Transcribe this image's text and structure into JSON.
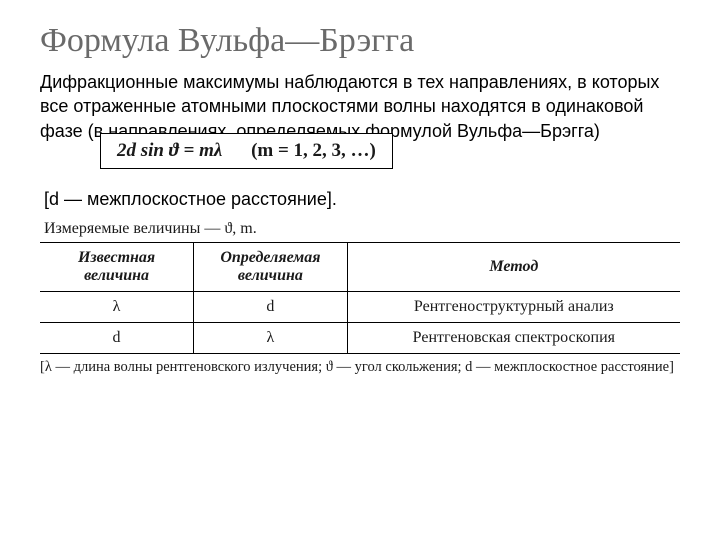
{
  "title": "Формула Вульфа—Брэгга",
  "paragraph": "Дифракционные максимумы наблюдаются в тех направлениях, в которых все  отраженные атомными плоскостями волны находятся в одинаковой фазе (в направлениях, определяемых формулой Вульфа—Брэгга)",
  "formula": "2d sin ϑ = mλ",
  "formula_range": "(m = 1, 2, 3, …)",
  "note": "[d — межплоскостное расстояние].",
  "measured": "Измеряемые величины — ϑ, m.",
  "table": {
    "headers": [
      "Известная величина",
      "Определяемая величина",
      "Метод"
    ],
    "rows": [
      [
        "λ",
        "d",
        "Рентгеноструктурный анализ"
      ],
      [
        "d",
        "λ",
        "Рентгеновская спектроскопия"
      ]
    ]
  },
  "legend": "[λ — длина волны рентгеновского излучения; ϑ — угол скольжения; d — межплоскостное расстояние]"
}
